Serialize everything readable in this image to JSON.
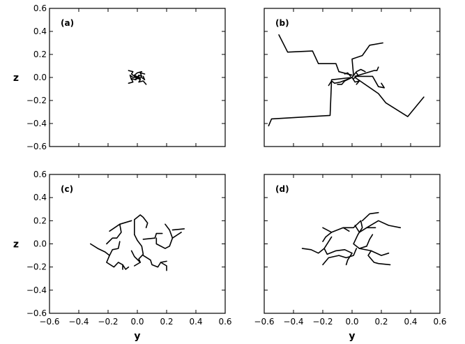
{
  "chart_data": [
    {
      "type": "line",
      "panel_label": "(a)",
      "xlabel": "",
      "ylabel": "z",
      "xlim": [
        -0.6,
        0.6
      ],
      "ylim": [
        -0.6,
        0.6
      ],
      "xticks": [],
      "yticks": [
        "0.6",
        "0.4",
        "0.2",
        "0.0",
        "−0.2",
        "−0.4",
        "−0.6"
      ],
      "grid": false,
      "color": "#000000",
      "series": [
        {
          "x": [
            0.0,
            0.01,
            0.03,
            0.02,
            0.05
          ],
          "y": [
            0.0,
            0.02,
            0.01,
            0.04,
            0.03
          ]
        },
        {
          "x": [
            0.0,
            -0.02,
            -0.04,
            -0.03,
            -0.06
          ],
          "y": [
            0.0,
            0.01,
            0.03,
            0.05,
            0.06
          ]
        },
        {
          "x": [
            0.0,
            -0.01,
            -0.04,
            -0.03,
            -0.06
          ],
          "y": [
            0.0,
            -0.02,
            -0.01,
            -0.04,
            -0.05
          ]
        },
        {
          "x": [
            0.0,
            0.02,
            0.01,
            0.04,
            0.06
          ],
          "y": [
            0.0,
            -0.02,
            -0.04,
            -0.03,
            -0.06
          ]
        },
        {
          "x": [
            0.0,
            0.03,
            0.05,
            0.04
          ],
          "y": [
            0.0,
            0.0,
            -0.02,
            0.01
          ]
        },
        {
          "x": [
            0.0,
            -0.03,
            -0.05,
            -0.04
          ],
          "y": [
            0.0,
            0.0,
            0.02,
            -0.02
          ]
        },
        {
          "x": [
            0.01,
            -0.01,
            0.02,
            -0.02,
            0.0,
            0.03
          ],
          "y": [
            0.01,
            -0.01,
            -0.01,
            0.02,
            0.04,
            0.05
          ]
        }
      ]
    },
    {
      "type": "line",
      "panel_label": "(b)",
      "xlabel": "",
      "ylabel": "",
      "xlim": [
        -0.6,
        0.6
      ],
      "ylim": [
        -0.6,
        0.6
      ],
      "xticks": [],
      "yticks": [],
      "grid": false,
      "color": "#000000",
      "series": [
        {
          "x": [
            0.0,
            -0.09,
            -0.11,
            -0.23,
            -0.27,
            -0.44,
            -0.5
          ],
          "y": [
            0.02,
            0.05,
            0.12,
            0.12,
            0.23,
            0.22,
            0.37
          ]
        },
        {
          "x": [
            0.0,
            -0.14,
            -0.15,
            -0.55,
            -0.57
          ],
          "y": [
            0.0,
            -0.02,
            -0.33,
            -0.36,
            -0.42
          ]
        },
        {
          "x": [
            0.02,
            0.18,
            0.23,
            0.38,
            0.49
          ],
          "y": [
            0.0,
            -0.14,
            -0.22,
            -0.34,
            -0.17
          ]
        },
        {
          "x": [
            0.01,
            0.0,
            0.07,
            0.12,
            0.21
          ],
          "y": [
            0.02,
            0.16,
            0.19,
            0.28,
            0.3
          ]
        },
        {
          "x": [
            0.03,
            0.14,
            0.18,
            0.22,
            0.2
          ],
          "y": [
            0.01,
            0.01,
            -0.08,
            -0.09,
            -0.05
          ]
        },
        {
          "x": [
            0.02,
            0.15,
            0.17,
            0.18
          ],
          "y": [
            0.01,
            0.06,
            0.06,
            0.09
          ]
        },
        {
          "x": [
            -0.02,
            -0.08,
            -0.12,
            -0.14,
            -0.16
          ],
          "y": [
            -0.01,
            -0.04,
            -0.05,
            -0.03,
            -0.07
          ]
        },
        {
          "x": [
            0.0,
            -0.05,
            -0.07,
            -0.1
          ],
          "y": [
            0.0,
            -0.03,
            -0.06,
            -0.06
          ]
        },
        {
          "x": [
            0.0,
            0.03,
            0.06,
            0.09
          ],
          "y": [
            0.0,
            0.05,
            0.07,
            0.05
          ]
        },
        {
          "x": [
            0.0,
            0.02,
            0.05,
            0.03
          ],
          "y": [
            0.0,
            -0.04,
            -0.03,
            -0.06
          ]
        },
        {
          "x": [
            -0.01,
            -0.03,
            -0.05
          ],
          "y": [
            0.01,
            0.04,
            0.03
          ]
        },
        {
          "x": [
            0.01,
            0.04,
            0.03
          ],
          "y": [
            -0.01,
            0.02,
            0.04
          ]
        }
      ]
    },
    {
      "type": "line",
      "panel_label": "(c)",
      "xlabel": "y",
      "ylabel": "z",
      "xlim": [
        -0.6,
        0.6
      ],
      "ylim": [
        -0.6,
        0.6
      ],
      "xticks": [
        "−0.6",
        "−0.4",
        "−0.2",
        "0.0",
        "0.2",
        "0.4",
        "0.6"
      ],
      "yticks": [
        "0.6",
        "0.4",
        "0.2",
        "0.0",
        "−0.2",
        "−0.4",
        "−0.6"
      ],
      "grid": false,
      "color": "#000000",
      "series": [
        {
          "x": [
            -0.04,
            -0.12,
            -0.19
          ],
          "y": [
            0.2,
            0.17,
            0.11
          ]
        },
        {
          "x": [
            -0.12,
            -0.11,
            -0.14,
            -0.17,
            -0.21
          ],
          "y": [
            0.17,
            0.1,
            0.05,
            0.05,
            0.0
          ]
        },
        {
          "x": [
            -0.12,
            -0.13,
            -0.17,
            -0.19,
            -0.22,
            -0.27,
            -0.32
          ],
          "y": [
            0.02,
            -0.04,
            -0.05,
            -0.1,
            -0.07,
            -0.04,
            0.0
          ]
        },
        {
          "x": [
            -0.19,
            -0.21,
            -0.16,
            -0.13,
            -0.1,
            -0.1
          ],
          "y": [
            -0.1,
            -0.16,
            -0.2,
            -0.16,
            -0.18,
            -0.22
          ]
        },
        {
          "x": [
            -0.02,
            0.0,
            0.03,
            0.04,
            0.01,
            0.02
          ],
          "y": [
            0.08,
            0.03,
            -0.02,
            -0.09,
            -0.13,
            -0.16
          ]
        },
        {
          "x": [
            -0.02,
            -0.02,
            0.02,
            0.04,
            0.07,
            0.06
          ],
          "y": [
            0.08,
            0.21,
            0.25,
            0.23,
            0.18,
            0.14
          ]
        },
        {
          "x": [
            -0.04,
            -0.02,
            0.02,
            -0.02
          ],
          "y": [
            -0.06,
            -0.11,
            -0.16,
            -0.19
          ]
        },
        {
          "x": [
            0.04,
            0.09,
            0.1,
            0.14,
            0.16,
            0.2
          ],
          "y": [
            -0.1,
            -0.14,
            -0.18,
            -0.2,
            -0.16,
            -0.15
          ]
        },
        {
          "x": [
            0.16,
            0.2,
            0.2
          ],
          "y": [
            -0.16,
            -0.19,
            -0.23
          ]
        },
        {
          "x": [
            -0.1,
            -0.08,
            -0.06
          ],
          "y": [
            -0.18,
            -0.22,
            -0.2
          ]
        },
        {
          "x": [
            0.04,
            0.12,
            0.13,
            0.17
          ],
          "y": [
            0.04,
            0.05,
            0.09,
            0.09
          ]
        },
        {
          "x": [
            0.13,
            0.13,
            0.19,
            0.22,
            0.24,
            0.3
          ],
          "y": [
            0.05,
            0.0,
            -0.04,
            -0.02,
            0.05,
            0.1
          ]
        },
        {
          "x": [
            0.24,
            0.22,
            0.19
          ],
          "y": [
            0.05,
            0.12,
            0.17
          ]
        },
        {
          "x": [
            0.24,
            0.32
          ],
          "y": [
            0.12,
            0.13
          ]
        }
      ]
    },
    {
      "type": "line",
      "panel_label": "(d)",
      "xlabel": "y",
      "ylabel": "",
      "xlim": [
        -0.6,
        0.6
      ],
      "ylim": [
        -0.6,
        0.6
      ],
      "xticks": [
        "−0.6",
        "−0.4",
        "−0.2",
        "0.0",
        "0.2",
        "0.4",
        "0.6"
      ],
      "yticks": [],
      "grid": false,
      "color": "#000000",
      "series": [
        {
          "x": [
            -0.2,
            -0.14,
            -0.18,
            -0.2
          ],
          "y": [
            0.14,
            0.1,
            0.06,
            0.02
          ]
        },
        {
          "x": [
            -0.14,
            -0.06,
            -0.02
          ],
          "y": [
            0.1,
            0.14,
            0.11
          ]
        },
        {
          "x": [
            -0.14,
            -0.16,
            -0.19,
            -0.23,
            -0.28,
            -0.34
          ],
          "y": [
            0.06,
            0.02,
            -0.04,
            -0.08,
            -0.05,
            -0.04
          ]
        },
        {
          "x": [
            -0.19,
            -0.17,
            -0.11,
            -0.05,
            0.0
          ],
          "y": [
            -0.04,
            -0.09,
            -0.06,
            -0.05,
            -0.08
          ]
        },
        {
          "x": [
            -0.06,
            0.01,
            0.06,
            0.07,
            0.04
          ],
          "y": [
            0.14,
            0.14,
            0.2,
            0.14,
            0.08
          ]
        },
        {
          "x": [
            0.02,
            0.05,
            0.1,
            0.16
          ],
          "y": [
            0.16,
            0.1,
            0.14,
            0.14
          ]
        },
        {
          "x": [
            0.04,
            0.01,
            0.05,
            0.1
          ],
          "y": [
            0.08,
            0.0,
            -0.04,
            -0.02
          ]
        },
        {
          "x": [
            0.03,
            0.01,
            -0.04,
            -0.09,
            -0.16,
            -0.2
          ],
          "y": [
            -0.04,
            -0.1,
            -0.12,
            -0.1,
            -0.12,
            -0.18
          ]
        },
        {
          "x": [
            0.05,
            0.13,
            0.2,
            0.25
          ],
          "y": [
            -0.04,
            -0.06,
            -0.1,
            -0.08
          ]
        },
        {
          "x": [
            0.1,
            0.12,
            0.14
          ],
          "y": [
            -0.02,
            0.04,
            0.08
          ]
        },
        {
          "x": [
            0.13,
            0.11,
            0.15,
            0.18,
            0.26
          ],
          "y": [
            -0.06,
            -0.1,
            -0.16,
            -0.17,
            -0.18
          ]
        },
        {
          "x": [
            0.1,
            0.18,
            0.25,
            0.33
          ],
          "y": [
            0.14,
            0.2,
            0.16,
            0.14
          ]
        },
        {
          "x": [
            0.07,
            0.12,
            0.18
          ],
          "y": [
            0.2,
            0.26,
            0.27
          ]
        },
        {
          "x": [
            0.0,
            -0.03,
            -0.04
          ],
          "y": [
            -0.08,
            -0.14,
            -0.18
          ]
        }
      ]
    }
  ]
}
